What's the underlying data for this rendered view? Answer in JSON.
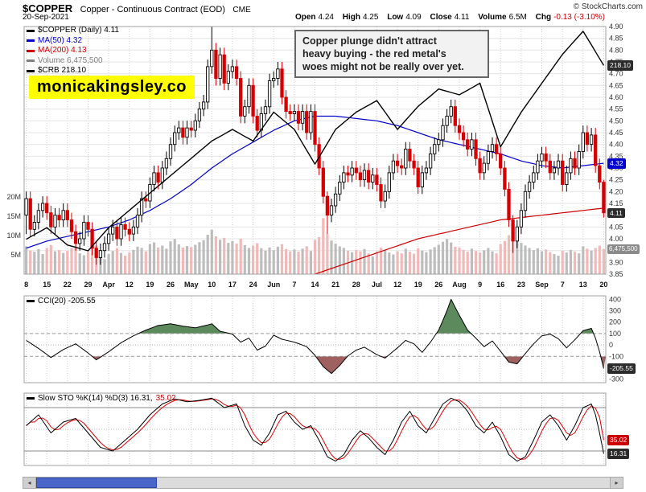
{
  "header": {
    "symbol": "$COPPER",
    "description": "Copper - Continuous Contract (EOD)",
    "exchange": "CME",
    "copyright": "© StockCharts.com",
    "date": "20-Sep-2021",
    "quote_items": [
      {
        "label": "Open",
        "value": "4.24"
      },
      {
        "label": "High",
        "value": "4.25"
      },
      {
        "label": "Low",
        "value": "4.09"
      },
      {
        "label": "Close",
        "value": "4.11"
      },
      {
        "label": "Volume",
        "value": "6.5M"
      },
      {
        "label": "Chg",
        "value": "-0.13 (-3.10%)"
      }
    ]
  },
  "watermark": "monicakingsley.co",
  "annotation_lines": [
    "Copper plunge didn't attract",
    "heavy buying - the red metal's",
    "woes might not be really over yet."
  ],
  "main_legend": [
    {
      "label": "$COPPER (Daily) 4.11",
      "color": "#000000"
    },
    {
      "label": "MA(50) 4.32",
      "color": "#0000cc"
    },
    {
      "label": "MA(200) 4.13",
      "color": "#cc0000"
    },
    {
      "label": "Volume 6,475,500",
      "color": "#808080"
    },
    {
      "label": "$CRB 218.10",
      "color": "#000000"
    }
  ],
  "badges": {
    "crb": "218.10",
    "ma50": "4.32",
    "close": "4.11",
    "volume": "6,475,500",
    "cci": "-205.55",
    "sto_d": "35.02",
    "sto_k": "16.31"
  },
  "icons": {
    "scroll_left": "◂",
    "scroll_right": "▸"
  },
  "colors": {
    "up_candle_outline": "#000000",
    "down_candle": "#d60000",
    "ma50": "#0000cc",
    "ma200": "#cc0000",
    "crb_line": "#000000",
    "volume_up": "#bdbdbd",
    "volume_down": "#f2b9b9",
    "cci_fill_above": "#5c8a5c",
    "cci_fill_below": "#9f6060",
    "sto_d": "#e00000",
    "negative": "#cc0000",
    "badge_dark": "#2b2b2b",
    "badge_blue": "#0000cc",
    "badge_red": "#cc0000",
    "badge_gray": "#8a8a8a",
    "watermark_bg": "#ffff00",
    "annotation_bg": "#f2f2f2",
    "annotation_border": "#666666",
    "scroll_thumb": "#4a66c8"
  },
  "chart_data": {
    "type": "candlestick",
    "title": "$COPPER Daily candlesticks with MA(50), MA(200), Volume and $CRB overlay; CCI(20) and Slow Stochastic sub-panels",
    "x_tick_labels": [
      "8",
      "15",
      "22",
      "29",
      "Apr",
      "12",
      "19",
      "26",
      "May",
      "10",
      "17",
      "24",
      "Jun",
      "7",
      "14",
      "21",
      "28",
      "Jul",
      "12",
      "19",
      "26",
      "Aug",
      "9",
      "16",
      "23",
      "Sep",
      "7",
      "13",
      "20"
    ],
    "price_axis": {
      "min": 3.85,
      "max": 4.9,
      "step": 0.05
    },
    "price_axis_labels": [
      "4.90",
      "4.85",
      "4.80",
      "4.75",
      "4.70",
      "4.65",
      "4.60",
      "4.55",
      "4.50",
      "4.45",
      "4.40",
      "4.35",
      "4.30",
      "4.25",
      "4.20",
      "4.15",
      "4.10",
      "4.05",
      "4.00",
      "3.95",
      "3.90",
      "3.85"
    ],
    "closes": [
      4.17,
      4.04,
      4.07,
      4.12,
      4.15,
      4.11,
      4.05,
      4.1,
      4.08,
      4.12,
      4.08,
      4.03,
      3.98,
      4.0,
      4.07,
      4.04,
      3.96,
      3.92,
      3.95,
      3.98,
      4.02,
      4.05,
      4.0,
      4.06,
      4.04,
      4.02,
      4.05,
      4.1,
      4.17,
      4.16,
      4.23,
      4.28,
      4.24,
      4.3,
      4.34,
      4.4,
      4.45,
      4.47,
      4.43,
      4.47,
      4.46,
      4.5,
      4.55,
      4.58,
      4.73,
      4.8,
      4.68,
      4.78,
      4.66,
      4.71,
      4.73,
      4.68,
      4.52,
      4.56,
      4.65,
      4.52,
      4.46,
      4.53,
      4.56,
      4.67,
      4.68,
      4.72,
      4.6,
      4.54,
      4.53,
      4.54,
      4.49,
      4.54,
      4.45,
      4.54,
      4.4,
      4.3,
      4.18,
      4.1,
      4.14,
      4.19,
      4.24,
      4.28,
      4.27,
      4.3,
      4.28,
      4.25,
      4.29,
      4.24,
      4.27,
      4.23,
      4.16,
      4.2,
      4.28,
      4.33,
      4.31,
      4.3,
      4.38,
      4.33,
      4.3,
      4.22,
      4.28,
      4.3,
      4.36,
      4.4,
      4.42,
      4.48,
      4.52,
      4.56,
      4.48,
      4.45,
      4.42,
      4.38,
      4.42,
      4.34,
      4.28,
      4.32,
      4.37,
      4.4,
      4.36,
      4.3,
      4.21,
      4.08,
      3.99,
      4.05,
      4.12,
      4.2,
      4.24,
      4.28,
      4.33,
      4.36,
      4.33,
      4.28,
      4.3,
      4.33,
      4.23,
      4.28,
      4.34,
      4.3,
      4.37,
      4.45,
      4.4,
      4.44,
      4.31,
      4.24,
      4.11
    ],
    "ohlc_overrides": {
      "0": [
        4.1,
        4.2,
        4.02,
        4.17
      ],
      "45": [
        4.73,
        4.9,
        4.7,
        4.8
      ],
      "73": [
        4.18,
        4.2,
        4.02,
        4.1
      ],
      "118": [
        4.08,
        4.1,
        3.94,
        3.99
      ],
      "140": [
        4.24,
        4.25,
        4.09,
        4.11
      ]
    },
    "volumes_m": [
      7.2,
      6.1,
      5.8,
      6.5,
      5.2,
      6.8,
      7.5,
      5.9,
      6.2,
      5.5,
      6.0,
      6.8,
      7.2,
      5.4,
      4.9,
      5.8,
      6.6,
      7.4,
      5.1,
      3.9,
      5.2,
      6.0,
      6.7,
      5.5,
      4.8,
      5.6,
      6.3,
      7.1,
      6.8,
      5.9,
      7.8,
      8.2,
      6.9,
      7.4,
      6.6,
      8.5,
      9.1,
      7.7,
      6.9,
      7.3,
      7.0,
      7.6,
      8.3,
      8.8,
      10.2,
      11.5,
      9.8,
      8.9,
      9.4,
      8.1,
      8.6,
      7.9,
      9.2,
      7.5,
      6.8,
      7.4,
      8.0,
      6.7,
      6.1,
      6.9,
      6.2,
      7.1,
      7.8,
      6.5,
      5.9,
      6.4,
      5.8,
      6.6,
      7.2,
      6.0,
      8.9,
      9.6,
      14.5,
      10.4,
      8.7,
      7.9,
      7.2,
      6.8,
      6.1,
      5.7,
      6.3,
      5.9,
      6.5,
      5.4,
      4.6,
      5.8,
      6.9,
      6.2,
      5.6,
      5.1,
      5.9,
      5.4,
      6.6,
      5.8,
      5.3,
      6.7,
      6.1,
      5.7,
      6.4,
      7.0,
      7.6,
      8.4,
      9.1,
      8.2,
      7.1,
      6.9,
      6.3,
      5.8,
      6.6,
      6.0,
      5.6,
      6.2,
      6.8,
      5.9,
      5.4,
      7.8,
      8.6,
      10.1,
      11.2,
      9.3,
      8.1,
      7.4,
      6.8,
      6.2,
      6.7,
      5.9,
      6.4,
      5.7,
      5.2,
      4.8,
      6.1,
      5.6,
      6.3,
      5.8,
      5.4,
      7.2,
      6.6,
      6.1,
      6.8,
      7.4,
      6.5
    ],
    "volume_axis": [
      {
        "label": "20M",
        "value": 20
      },
      {
        "label": "15M",
        "value": 15
      },
      {
        "label": "10M",
        "value": 10
      },
      {
        "label": "5M",
        "value": 5
      }
    ],
    "ma50_weekly": [
      3.96,
      3.99,
      4.01,
      4.03,
      4.05,
      4.08,
      4.12,
      4.17,
      4.23,
      4.3,
      4.36,
      4.41,
      4.46,
      4.5,
      4.52,
      4.52,
      4.51,
      4.5,
      4.48,
      4.45,
      4.42,
      4.4,
      4.38,
      4.36,
      4.33,
      4.31,
      4.3,
      4.31,
      4.32
    ],
    "ma200_weekly": [
      3.3,
      3.34,
      3.38,
      3.42,
      3.46,
      3.5,
      3.54,
      3.58,
      3.62,
      3.66,
      3.7,
      3.74,
      3.78,
      3.82,
      3.85,
      3.88,
      3.91,
      3.94,
      3.97,
      4.0,
      4.02,
      4.04,
      4.06,
      4.08,
      4.09,
      4.1,
      4.11,
      4.12,
      4.13
    ],
    "crb_weekly": [
      188,
      190,
      187,
      186,
      190,
      193,
      196,
      199,
      202,
      205,
      207,
      205,
      210,
      207,
      201,
      207,
      210,
      212,
      207,
      211,
      214,
      213,
      215,
      204,
      210,
      215,
      220,
      224,
      218.1
    ],
    "crb_last": 218.1,
    "cci": {
      "label": "CCI(20) -205.55",
      "last": -205.55,
      "axis": [
        400,
        300,
        200,
        100,
        0,
        -100,
        -200,
        -300
      ],
      "ylim": [
        -330,
        430
      ],
      "overbought": 100,
      "oversold": -100,
      "points": [
        [
          0,
          40
        ],
        [
          3,
          -30
        ],
        [
          6,
          -110
        ],
        [
          9,
          -40
        ],
        [
          12,
          10
        ],
        [
          15,
          -70
        ],
        [
          17,
          -130
        ],
        [
          20,
          -60
        ],
        [
          23,
          20
        ],
        [
          26,
          80
        ],
        [
          29,
          130
        ],
        [
          32,
          170
        ],
        [
          35,
          185
        ],
        [
          38,
          165
        ],
        [
          41,
          150
        ],
        [
          44,
          175
        ],
        [
          45,
          185
        ],
        [
          47,
          120
        ],
        [
          50,
          95
        ],
        [
          52,
          25
        ],
        [
          54,
          60
        ],
        [
          56,
          -45
        ],
        [
          58,
          -10
        ],
        [
          60,
          85
        ],
        [
          62,
          50
        ],
        [
          65,
          25
        ],
        [
          68,
          -15
        ],
        [
          70,
          -90
        ],
        [
          72,
          -190
        ],
        [
          74,
          -250
        ],
        [
          76,
          -180
        ],
        [
          78,
          -95
        ],
        [
          80,
          -45
        ],
        [
          82,
          -20
        ],
        [
          85,
          -85
        ],
        [
          87,
          -115
        ],
        [
          90,
          -25
        ],
        [
          92,
          40
        ],
        [
          94,
          10
        ],
        [
          96,
          -65
        ],
        [
          98,
          25
        ],
        [
          100,
          130
        ],
        [
          102,
          300
        ],
        [
          103,
          400
        ],
        [
          105,
          260
        ],
        [
          107,
          130
        ],
        [
          109,
          60
        ],
        [
          111,
          -15
        ],
        [
          113,
          35
        ],
        [
          115,
          -55
        ],
        [
          117,
          -150
        ],
        [
          119,
          -165
        ],
        [
          121,
          -75
        ],
        [
          123,
          10
        ],
        [
          125,
          80
        ],
        [
          127,
          95
        ],
        [
          129,
          55
        ],
        [
          131,
          -25
        ],
        [
          133,
          45
        ],
        [
          135,
          125
        ],
        [
          137,
          145
        ],
        [
          138,
          60
        ],
        [
          139,
          -60
        ],
        [
          140,
          -205.55
        ]
      ]
    },
    "sto": {
      "label_k": "Slow STO %K(14) %D(3) 16.31,",
      "label_d": "35.02",
      "k_last": 16.31,
      "d_last": 35.02,
      "lines": [
        80,
        50,
        20
      ],
      "ylim": [
        0,
        100
      ],
      "points_k": [
        [
          0,
          55
        ],
        [
          3,
          70
        ],
        [
          6,
          45
        ],
        [
          9,
          60
        ],
        [
          12,
          65
        ],
        [
          15,
          45
        ],
        [
          18,
          25
        ],
        [
          21,
          20
        ],
        [
          24,
          35
        ],
        [
          27,
          50
        ],
        [
          30,
          70
        ],
        [
          33,
          85
        ],
        [
          36,
          92
        ],
        [
          39,
          88
        ],
        [
          42,
          90
        ],
        [
          45,
          93
        ],
        [
          48,
          80
        ],
        [
          51,
          85
        ],
        [
          53,
          55
        ],
        [
          55,
          35
        ],
        [
          57,
          28
        ],
        [
          59,
          45
        ],
        [
          61,
          70
        ],
        [
          63,
          75
        ],
        [
          65,
          60
        ],
        [
          67,
          50
        ],
        [
          69,
          55
        ],
        [
          71,
          35
        ],
        [
          73,
          12
        ],
        [
          75,
          6
        ],
        [
          77,
          15
        ],
        [
          79,
          35
        ],
        [
          81,
          48
        ],
        [
          83,
          38
        ],
        [
          85,
          25
        ],
        [
          87,
          15
        ],
        [
          89,
          35
        ],
        [
          91,
          60
        ],
        [
          93,
          75
        ],
        [
          95,
          55
        ],
        [
          97,
          45
        ],
        [
          99,
          65
        ],
        [
          101,
          85
        ],
        [
          103,
          93
        ],
        [
          105,
          88
        ],
        [
          107,
          75
        ],
        [
          109,
          55
        ],
        [
          111,
          45
        ],
        [
          113,
          60
        ],
        [
          115,
          40
        ],
        [
          117,
          15
        ],
        [
          119,
          6
        ],
        [
          121,
          12
        ],
        [
          123,
          35
        ],
        [
          125,
          60
        ],
        [
          127,
          70
        ],
        [
          129,
          55
        ],
        [
          131,
          35
        ],
        [
          133,
          55
        ],
        [
          135,
          80
        ],
        [
          137,
          85
        ],
        [
          138,
          70
        ],
        [
          139,
          45
        ],
        [
          140,
          16.31
        ]
      ]
    }
  }
}
